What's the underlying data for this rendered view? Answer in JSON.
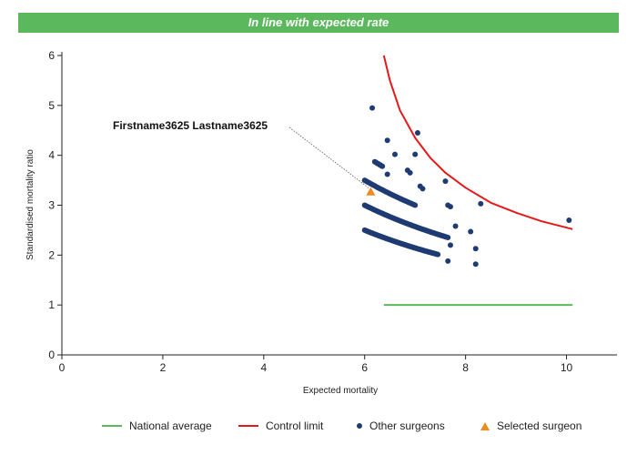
{
  "banner": {
    "text": "In line with expected rate"
  },
  "chart_data": {
    "type": "scatter",
    "xlabel": "Expected mortality",
    "ylabel": "Standardised mortality ratio",
    "xlim": [
      0,
      11
    ],
    "ylim": [
      0,
      6
    ],
    "x_ticks": [
      0,
      2,
      4,
      6,
      8,
      10
    ],
    "y_ticks": [
      0,
      1,
      2,
      3,
      4,
      5,
      6
    ],
    "grid": false,
    "legend_position": "bottom",
    "annotation": {
      "text": "Firstname3625 Lastname3625",
      "x": 6.12,
      "y": 3.27
    },
    "colors": {
      "national_average": "#5cb85c",
      "control_limit": "#e31a1c",
      "other_surgeons": "#1f3b73",
      "selected_surgeon": "#ef8a1f"
    },
    "series": [
      {
        "name": "National average",
        "kind": "line",
        "points": [
          [
            6.38,
            1.0
          ],
          [
            10.12,
            1.0
          ]
        ]
      },
      {
        "name": "Control limit",
        "kind": "line",
        "points": [
          [
            6.38,
            6.0
          ],
          [
            6.5,
            5.5
          ],
          [
            6.7,
            4.9
          ],
          [
            7.0,
            4.35
          ],
          [
            7.3,
            3.95
          ],
          [
            7.6,
            3.65
          ],
          [
            8.0,
            3.35
          ],
          [
            8.5,
            3.05
          ],
          [
            9.0,
            2.85
          ],
          [
            9.5,
            2.68
          ],
          [
            10.12,
            2.52
          ]
        ]
      },
      {
        "name": "Other surgeons",
        "kind": "scatter",
        "bands": [
          {
            "k": 15,
            "x_from": 6.0,
            "x_to": 7.45,
            "count": 90
          },
          {
            "k": 18,
            "x_from": 6.0,
            "x_to": 7.65,
            "count": 85
          },
          {
            "k": 21,
            "x_from": 6.0,
            "x_to": 7.0,
            "count": 40
          },
          {
            "k": 24,
            "x_from": 6.2,
            "x_to": 6.35,
            "count": 10
          }
        ],
        "points": [
          [
            6.15,
            4.95
          ],
          [
            6.45,
            4.3
          ],
          [
            7.05,
            4.45
          ],
          [
            6.6,
            4.02
          ],
          [
            7.0,
            4.02
          ],
          [
            6.85,
            3.7
          ],
          [
            6.9,
            3.65
          ],
          [
            6.45,
            3.62
          ],
          [
            7.1,
            3.38
          ],
          [
            7.15,
            3.33
          ],
          [
            7.6,
            3.48
          ],
          [
            7.65,
            3.0
          ],
          [
            7.7,
            2.97
          ],
          [
            7.8,
            2.58
          ],
          [
            7.7,
            2.2
          ],
          [
            7.65,
            1.88
          ],
          [
            8.1,
            2.47
          ],
          [
            8.2,
            2.13
          ],
          [
            8.2,
            1.82
          ],
          [
            8.3,
            3.03
          ],
          [
            10.05,
            2.7
          ]
        ]
      },
      {
        "name": "Selected surgeon",
        "kind": "scatter",
        "points": [
          [
            6.12,
            3.27
          ]
        ]
      }
    ]
  }
}
